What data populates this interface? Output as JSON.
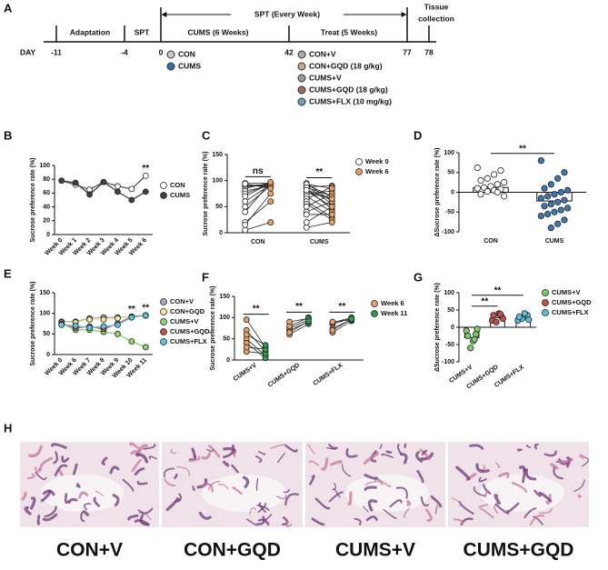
{
  "timeline": {
    "panel": "A",
    "day_label": "DAY",
    "days": [
      -11,
      -4,
      0,
      42,
      77,
      78
    ],
    "phases": [
      "Adaptation",
      "SPT",
      "CUMS (6 Weeks)",
      "Treat (5 Weeks)"
    ],
    "spt_arrow": "SPT (Every Week)",
    "end": [
      "Tissue",
      "collection"
    ],
    "groups_left": [
      {
        "name": "CON",
        "color": "#c8c8c8"
      },
      {
        "name": "CUMS",
        "color": "#3b6ea5"
      }
    ],
    "groups_right": [
      {
        "name": "CON+V",
        "color": "#a9a9a9"
      },
      {
        "name": "CON+GQD  (18 g/kg)",
        "color": "#c9a58a"
      },
      {
        "name": "CUMS+V",
        "color": "#9a9a9a"
      },
      {
        "name": "CUMS+GQD  (18 g/kg)",
        "color": "#a06a60"
      },
      {
        "name": "CUMS+FLX  (10 mg/kg)",
        "color": "#6aa6b8"
      }
    ]
  },
  "chart_data": [
    {
      "panel": "B",
      "type": "line",
      "ylabel": "Sucrose preference rate (%)",
      "categories": [
        "Week 0",
        "Week 1",
        "Week 2",
        "Week 3",
        "Week 4",
        "Week 5",
        "Week 6"
      ],
      "series": [
        {
          "name": "CON",
          "color": "#ffffff",
          "values": [
            78,
            72,
            65,
            76,
            70,
            66,
            85
          ]
        },
        {
          "name": "CUMS",
          "color": "#404040",
          "values": [
            78,
            75,
            58,
            76,
            62,
            50,
            62
          ]
        }
      ],
      "ylim": [
        0,
        100
      ],
      "yticks": [
        0,
        20,
        40,
        60,
        80,
        100
      ],
      "legend": "right",
      "annotations": [
        {
          "text": "**",
          "category": "Week 6"
        }
      ]
    },
    {
      "panel": "C",
      "type": "paired",
      "ylabel": "Sucrose preference rate (%)",
      "categories": [
        "CON",
        "CUMS"
      ],
      "series": [
        {
          "name": "Week 0",
          "color": "#ffffff",
          "values": [
            [
              95,
              90,
              88,
              85,
              80,
              92,
              75,
              70,
              60,
              50,
              40,
              20,
              15,
              5,
              94
            ],
            [
              95,
              92,
              90,
              88,
              85,
              80,
              78,
              75,
              70,
              65,
              60,
              55,
              50,
              40,
              35,
              20,
              10,
              93,
              87,
              82
            ]
          ]
        },
        {
          "name": "Week 6",
          "color": "#e8a265",
          "values": [
            [
              95,
              93,
              92,
              96,
              90,
              88,
              94,
              95,
              92,
              90,
              97,
              60,
              75,
              20,
              85
            ],
            [
              60,
              70,
              55,
              90,
              45,
              50,
              65,
              80,
              40,
              88,
              30,
              25,
              75,
              60,
              35,
              50,
              20,
              85,
              70,
              65
            ]
          ]
        }
      ],
      "ylim": [
        0,
        150
      ],
      "yticks": [
        0,
        50,
        100,
        150
      ],
      "legend": "right",
      "annotations": [
        {
          "text": "ns",
          "category": "CON"
        },
        {
          "text": "**",
          "category": "CUMS"
        }
      ]
    },
    {
      "panel": "D",
      "type": "bar",
      "ylabel": "ΔSucrose preference rate (%)",
      "categories": [
        "CON",
        "CUMS"
      ],
      "values": [
        12,
        -22
      ],
      "colors": [
        "#ffffff",
        "#3d78b5"
      ],
      "points": [
        [
          62,
          55,
          45,
          35,
          30,
          25,
          20,
          15,
          12,
          10,
          8,
          5,
          2,
          -5,
          -10,
          0
        ],
        [
          80,
          50,
          35,
          20,
          10,
          5,
          0,
          -5,
          -10,
          -15,
          -20,
          -25,
          -30,
          -35,
          -40,
          -45,
          -50,
          -55,
          -60,
          -70,
          -80,
          -90
        ]
      ],
      "ylim": [
        -100,
        100
      ],
      "yticks": [
        -100,
        -50,
        0,
        50,
        100
      ],
      "annotations": [
        {
          "text": "**",
          "from": "CON",
          "to": "CUMS"
        }
      ]
    },
    {
      "panel": "E",
      "type": "line",
      "ylabel": "Sucrose preference rate (%)",
      "categories": [
        "Week 0",
        "Week 6",
        "Week 7",
        "Week 8",
        "Week 9",
        "Week 10",
        "Week 11"
      ],
      "series": [
        {
          "name": "CON+V",
          "color": "#b0a3c8",
          "values": [
            80,
            80,
            88,
            90,
            90,
            92,
            95
          ]
        },
        {
          "name": "CON+GQD",
          "color": "#f5e6a3",
          "values": [
            78,
            78,
            85,
            85,
            88,
            92,
            95
          ]
        },
        {
          "name": "CUMS+V",
          "color": "#8ed36c",
          "values": [
            75,
            60,
            60,
            55,
            50,
            32,
            18
          ]
        },
        {
          "name": "CUMS+GQD",
          "color": "#c0504d",
          "values": [
            75,
            65,
            68,
            62,
            75,
            92,
            95
          ]
        },
        {
          "name": "CUMS+FLX",
          "color": "#5fc4e0",
          "values": [
            72,
            70,
            65,
            68,
            72,
            90,
            95
          ]
        }
      ],
      "ylim": [
        0,
        150
      ],
      "yticks": [
        0,
        50,
        100,
        150
      ],
      "legend": "right",
      "annotations": [
        {
          "text": "**",
          "category": "Week 10"
        },
        {
          "text": "**",
          "category": "Week 11"
        }
      ]
    },
    {
      "panel": "F",
      "type": "paired",
      "ylabel": "Sucrose preference rate (%)",
      "categories": [
        "CUMS+V",
        "CUMS+GQD",
        "CUMS+FLX"
      ],
      "series": [
        {
          "name": "Week 6",
          "color": "#e8a265",
          "values": [
            [
              95,
              70,
              50,
              40,
              20,
              30,
              60
            ],
            [
              60,
              70,
              75,
              80,
              90,
              65
            ],
            [
              65,
              75,
              85,
              88,
              90,
              70
            ]
          ]
        },
        {
          "name": "Week 11",
          "color": "#2e9e4f",
          "values": [
            [
              30,
              20,
              10,
              5,
              15,
              25,
              35
            ],
            [
              85,
              90,
              95,
              100,
              98,
              92
            ],
            [
              92,
              95,
              98,
              100,
              95,
              97
            ]
          ]
        }
      ],
      "ylim": [
        0,
        150
      ],
      "yticks": [
        0,
        50,
        100,
        150
      ],
      "legend": "right",
      "annotations": [
        {
          "text": "**",
          "category": "CUMS+V"
        },
        {
          "text": "**",
          "category": "CUMS+GQD"
        },
        {
          "text": "**",
          "category": "CUMS+FLX"
        }
      ]
    },
    {
      "panel": "G",
      "type": "bar",
      "ylabel": "ΔSucrose preference rate (%)",
      "categories": [
        "CUMS+V",
        "CUMS+GQD",
        "CUMS+FLX"
      ],
      "values": [
        -30,
        28,
        28
      ],
      "series": [
        {
          "name": "CUMS+V",
          "color": "#7ccd6a"
        },
        {
          "name": "CUMS+GQD",
          "color": "#c0504d"
        },
        {
          "name": "CUMS+FLX",
          "color": "#5bc0de"
        }
      ],
      "points": [
        [
          -10,
          -20,
          -40,
          -60,
          -25,
          -5,
          -35
        ],
        [
          20,
          30,
          40,
          15,
          35,
          25,
          38
        ],
        [
          20,
          35,
          40,
          25,
          30,
          22
        ]
      ],
      "ylim": [
        -100,
        100
      ],
      "yticks": [
        -100,
        -50,
        0,
        50,
        100
      ],
      "legend": "right",
      "annotations": [
        {
          "text": "**",
          "from": "CUMS+V",
          "to": "CUMS+GQD"
        },
        {
          "text": "**",
          "from": "CUMS+V",
          "to": "CUMS+FLX"
        }
      ]
    }
  ],
  "histology": {
    "panel": "H",
    "labels": [
      "CON+V",
      "CON+GQD",
      "CUMS+V",
      "CUMS+GQD"
    ]
  }
}
